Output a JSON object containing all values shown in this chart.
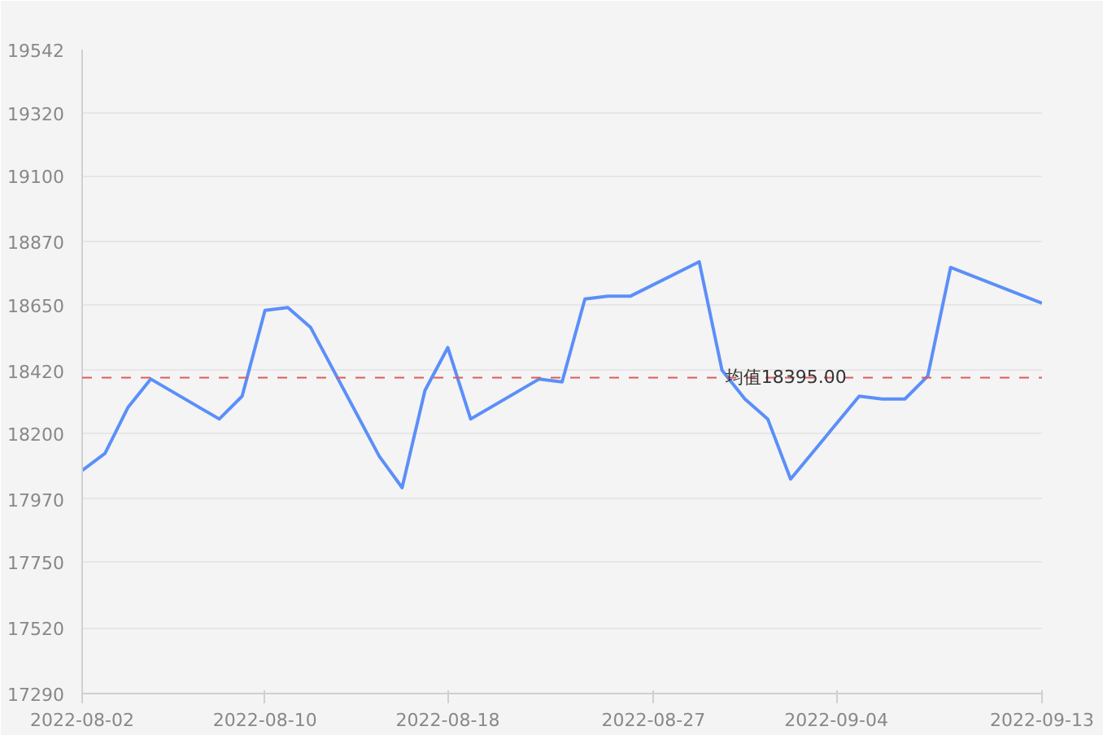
{
  "chart_data": {
    "type": "line",
    "x": [
      "2022-08-02",
      "2022-08-03",
      "2022-08-04",
      "2022-08-05",
      "2022-08-08",
      "2022-08-09",
      "2022-08-10",
      "2022-08-11",
      "2022-08-12",
      "2022-08-15",
      "2022-08-16",
      "2022-08-17",
      "2022-08-18",
      "2022-08-19",
      "2022-08-22",
      "2022-08-23",
      "2022-08-24",
      "2022-08-25",
      "2022-08-26",
      "2022-08-29",
      "2022-08-30",
      "2022-08-31",
      "2022-09-01",
      "2022-09-02",
      "2022-09-05",
      "2022-09-06",
      "2022-09-07",
      "2022-09-08",
      "2022-09-09",
      "2022-09-13"
    ],
    "series": [
      {
        "color": "#5b8ff9",
        "values": [
          18070,
          18130,
          18290,
          18390,
          18250,
          18330,
          18630,
          18640,
          18570,
          18120,
          18010,
          18350,
          18500,
          18250,
          18390,
          18380,
          18670,
          18680,
          18680,
          18800,
          18420,
          18320,
          18250,
          18040,
          18330,
          18320,
          18320,
          18400,
          18780,
          18655
        ]
      }
    ],
    "xlim": [
      "2022-08-02",
      "2022-09-13"
    ],
    "xticks": [
      "2022-08-02",
      "2022-08-10",
      "2022-08-18",
      "2022-08-27",
      "2022-09-04",
      "2022-09-13"
    ],
    "ylim": [
      17290,
      19542
    ],
    "yticks": [
      17290,
      17520,
      17750,
      17970,
      18200,
      18420,
      18650,
      18870,
      19100,
      19320,
      19542
    ],
    "grid": "y",
    "marker": "none",
    "line_style": "solid",
    "ref_lines": [
      {
        "axis": "y",
        "value": 18395,
        "label": "均值18395.00",
        "color": "#e05a5a",
        "line_style": "dashed"
      }
    ]
  }
}
